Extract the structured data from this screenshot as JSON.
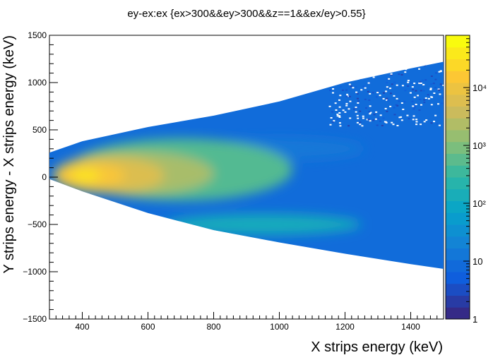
{
  "chart_data": {
    "type": "heatmap",
    "title": "ey-ex:ex {ex>300&&ey>300&&z==1&&ex/ey>0.55}",
    "xlabel": "X strips energy (keV)",
    "ylabel": "Y strips energy - X strips energy (keV)",
    "xlim": [
      300,
      1500
    ],
    "ylim": [
      -1500,
      1500
    ],
    "x_ticks": [
      "400",
      "600",
      "800",
      "1000",
      "1200",
      "1400"
    ],
    "y_ticks": [
      "1500",
      "1000",
      "500",
      "0",
      "−500",
      "−1000",
      "−1500"
    ],
    "colorbar": {
      "scale": "log",
      "range": [
        1,
        80000
      ],
      "ticks": [
        {
          "value": 1,
          "label": "1"
        },
        {
          "value": 10,
          "label": "10"
        },
        {
          "value": 100,
          "label": "10²"
        },
        {
          "value": 1000,
          "label": "10³"
        },
        {
          "value": 10000,
          "label": "10⁴"
        }
      ]
    },
    "band": {
      "upper_edge": [
        [
          300,
          260
        ],
        [
          400,
          380
        ],
        [
          600,
          530
        ],
        [
          800,
          650
        ],
        [
          1000,
          800
        ],
        [
          1200,
          1000
        ],
        [
          1400,
          1150
        ],
        [
          1500,
          1220
        ]
      ],
      "lower_edge": [
        [
          300,
          -20
        ],
        [
          400,
          -150
        ],
        [
          600,
          -380
        ],
        [
          800,
          -560
        ],
        [
          1000,
          -690
        ],
        [
          1200,
          -810
        ],
        [
          1400,
          -920
        ],
        [
          1500,
          -970
        ]
      ]
    },
    "peak": {
      "x": 410,
      "y": 20,
      "max_count": 50000
    },
    "grid": false,
    "legend": "none"
  }
}
